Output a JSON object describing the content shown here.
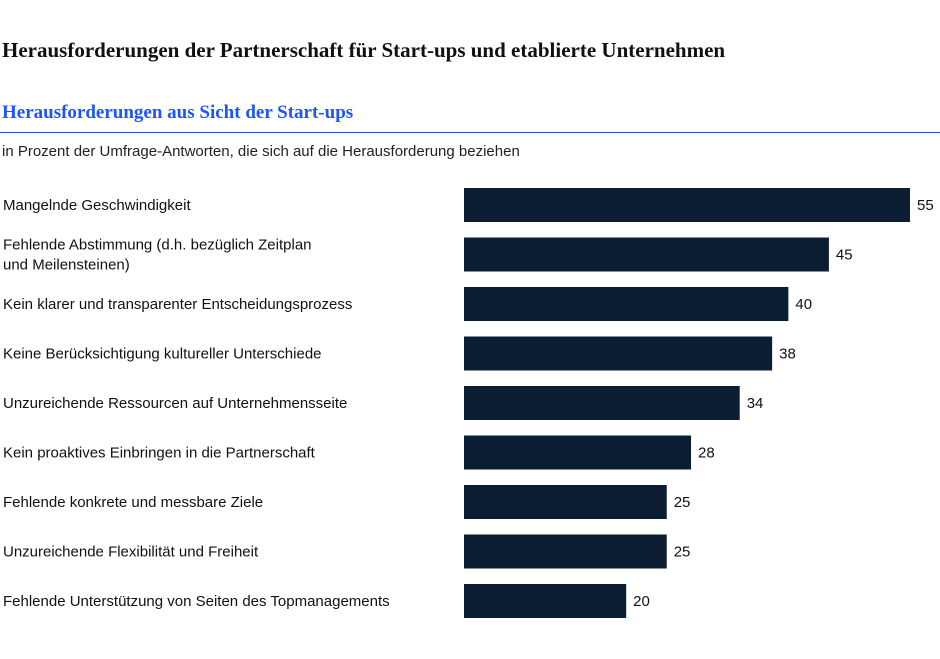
{
  "header": {
    "title": "Herausforderungen der Partnerschaft für Start-ups und etablierte Unternehmen",
    "subtitle": "Herausforderungen aus Sicht der Start-ups",
    "note": "in Prozent der Umfrage-Antworten, die sich auf die Herausforderung beziehen"
  },
  "colors": {
    "bar": "#0b1d33",
    "accent": "#2251ff"
  },
  "chart_data": {
    "type": "bar",
    "orientation": "horizontal",
    "categories": [
      [
        "Mangelnde Geschwindigkeit"
      ],
      [
        "Fehlende Abstimmung (d.h. bezüglich Zeitplan",
        "und Meilensteinen)"
      ],
      [
        "Kein klarer und transparenter Entscheidungsprozess"
      ],
      [
        "Keine Berücksichtigung kultureller Unterschiede"
      ],
      [
        "Unzureichende Ressourcen auf Unternehmensseite"
      ],
      [
        "Kein proaktives Einbringen in die Partnerschaft"
      ],
      [
        "Fehlende konkrete und messbare  Ziele"
      ],
      [
        "Unzureichende Flexibilität und Freiheit"
      ],
      [
        "Fehlende Unterstützung von Seiten des Topmanagements"
      ]
    ],
    "values": [
      55,
      45,
      40,
      38,
      34,
      28,
      25,
      25,
      20
    ],
    "xlim": [
      0,
      55
    ],
    "grid": false,
    "legend": "none"
  }
}
